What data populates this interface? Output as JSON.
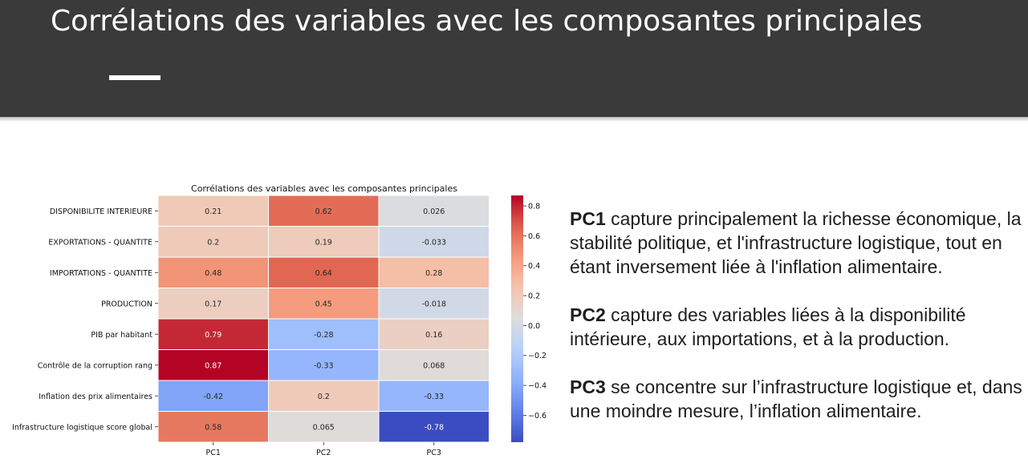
{
  "slide": {
    "title": "Corrélations des variables avec les composantes principales"
  },
  "chart_data": {
    "type": "heatmap",
    "title": "Corrélations des variables avec les composantes principales",
    "rows": [
      "DISPONIBILITE INTERIEURE",
      "EXPORTATIONS - QUANTITE",
      "IMPORTATIONS - QUANTITE",
      "PRODUCTION",
      "PIB par habitant",
      "Contrôle de la corruption rang",
      "Inflation des prix alimentaires",
      "Infrastructure logistique score global"
    ],
    "columns": [
      "PC1",
      "PC2",
      "PC3"
    ],
    "values": [
      [
        0.21,
        0.62,
        0.026
      ],
      [
        0.2,
        0.19,
        -0.033
      ],
      [
        0.48,
        0.64,
        0.28
      ],
      [
        0.17,
        0.45,
        -0.018
      ],
      [
        0.79,
        -0.28,
        0.16
      ],
      [
        0.87,
        -0.33,
        0.068
      ],
      [
        -0.42,
        0.2,
        -0.33
      ],
      [
        0.58,
        0.065,
        -0.78
      ]
    ],
    "labels": [
      [
        "0.21",
        "0.62",
        "0.026"
      ],
      [
        "0.2",
        "0.19",
        "-0.033"
      ],
      [
        "0.48",
        "0.64",
        "0.28"
      ],
      [
        "0.17",
        "0.45",
        "-0.018"
      ],
      [
        "0.79",
        "-0.28",
        "0.16"
      ],
      [
        "0.87",
        "-0.33",
        "0.068"
      ],
      [
        "-0.42",
        "0.2",
        "-0.33"
      ],
      [
        "0.58",
        "0.065",
        "-0.78"
      ]
    ],
    "colorscale": "coolwarm",
    "vmin": -0.78,
    "vmax": 0.87,
    "colorbar": {
      "ticks": [
        0.8,
        0.6,
        0.4,
        0.2,
        0.0,
        -0.2,
        -0.4,
        -0.6
      ],
      "tick_labels": [
        "0.8",
        "0.6",
        "0.4",
        "0.2",
        "0.0",
        "−0.2",
        "−0.4",
        "−0.6"
      ]
    }
  },
  "explanations": [
    {
      "label": "PC1",
      "text": " capture principalement la richesse économique, la stabilité politique, et l'infrastructure logistique, tout en étant inversement liée à l'inflation alimentaire."
    },
    {
      "label": "PC2",
      "text": " capture des variables liées à la disponibilité intérieure, aux importations, et à la production."
    },
    {
      "label": "PC3",
      "text": " se concentre sur l’infrastructure logistique et, dans une moindre mesure, l’inflation alimentaire."
    }
  ]
}
